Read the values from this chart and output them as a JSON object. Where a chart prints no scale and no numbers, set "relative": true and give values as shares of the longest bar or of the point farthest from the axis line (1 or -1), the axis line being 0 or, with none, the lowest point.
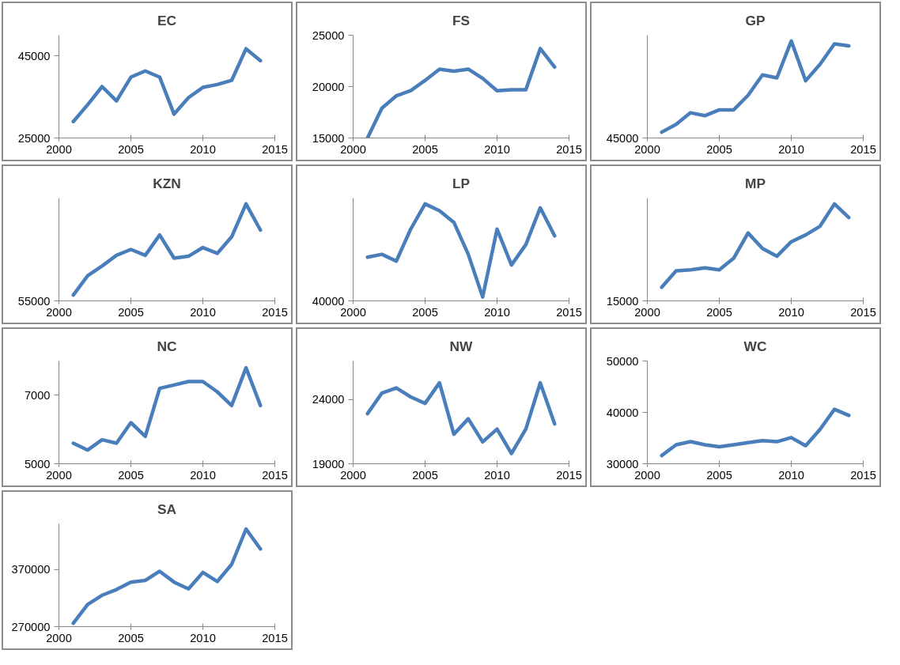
{
  "chart_data": [
    {
      "type": "line",
      "title": "EC",
      "x": [
        2001,
        2002,
        2003,
        2004,
        2005,
        2006,
        2007,
        2008,
        2009,
        2010,
        2011,
        2012,
        2013,
        2014
      ],
      "series": [
        {
          "color": "#4a7ebb",
          "values": [
            29000,
            33100,
            37500,
            34000,
            39800,
            41300,
            39800,
            30800,
            34800,
            37300,
            38000,
            39000,
            46700,
            43800
          ]
        }
      ],
      "xlim": [
        2000,
        2015
      ],
      "xticks": [
        2000,
        2005,
        2010,
        2015
      ],
      "ylim": [
        25000,
        50000
      ],
      "yticks": [
        25000,
        45000
      ],
      "line_style": "solid"
    },
    {
      "type": "line",
      "title": "FS",
      "x": [
        2001,
        2002,
        2003,
        2004,
        2005,
        2006,
        2007,
        2008,
        2009,
        2010,
        2011,
        2012,
        2013,
        2014
      ],
      "series": [
        {
          "color": "#4a7ebb",
          "values": [
            15000,
            17900,
            19100,
            19600,
            20600,
            21700,
            21500,
            21700,
            20800,
            19600,
            19700,
            19700,
            23700,
            21900
          ]
        }
      ],
      "xlim": [
        2000,
        2015
      ],
      "xticks": [
        2000,
        2005,
        2010,
        2015
      ],
      "ylim": [
        15000,
        25000
      ],
      "yticks": [
        15000,
        20000,
        25000
      ],
      "line_style": "solid"
    },
    {
      "type": "line",
      "title": "GP",
      "relative": true,
      "x": [
        2001,
        2002,
        2003,
        2004,
        2005,
        2006,
        2007,
        2008,
        2009,
        2010,
        2011,
        2012,
        2013,
        2014
      ],
      "series": [
        {
          "color": "#4a7ebb",
          "values": [
            0.06,
            0.14,
            0.26,
            0.23,
            0.29,
            0.29,
            0.44,
            0.65,
            0.62,
            1,
            0.59,
            0.76,
            0.97,
            0.95
          ]
        }
      ],
      "xlim": [
        2000,
        2015
      ],
      "xticks": [
        2000,
        2005,
        2010,
        2015
      ],
      "annotations": [
        "45000"
      ],
      "line_style": "solid"
    },
    {
      "type": "line",
      "title": "KZN",
      "relative": true,
      "x": [
        2001,
        2002,
        2003,
        2004,
        2005,
        2006,
        2007,
        2008,
        2009,
        2010,
        2011,
        2012,
        2013,
        2014
      ],
      "series": [
        {
          "color": "#4a7ebb",
          "values": [
            0.06,
            0.26,
            0.36,
            0.47,
            0.53,
            0.47,
            0.68,
            0.44,
            0.46,
            0.55,
            0.49,
            0.66,
            1,
            0.73
          ]
        }
      ],
      "xlim": [
        2000,
        2015
      ],
      "xticks": [
        2000,
        2005,
        2010,
        2015
      ],
      "annotations": [
        "55000"
      ],
      "line_style": "solid"
    },
    {
      "type": "line",
      "title": "LP",
      "relative": true,
      "x": [
        2001,
        2002,
        2003,
        2004,
        2005,
        2006,
        2007,
        2008,
        2009,
        2010,
        2011,
        2012,
        2013,
        2014
      ],
      "series": [
        {
          "color": "#4a7ebb",
          "values": [
            0.45,
            0.48,
            0.41,
            0.74,
            1,
            0.93,
            0.81,
            0.48,
            0.04,
            0.74,
            0.37,
            0.58,
            0.96,
            0.67
          ]
        }
      ],
      "xlim": [
        2000,
        2015
      ],
      "xticks": [
        2000,
        2005,
        2010,
        2015
      ],
      "annotations": [
        "40000"
      ],
      "line_style": "solid"
    },
    {
      "type": "line",
      "title": "MP",
      "relative": true,
      "x": [
        2001,
        2002,
        2003,
        2004,
        2005,
        2006,
        2007,
        2008,
        2009,
        2010,
        2011,
        2012,
        2013,
        2014
      ],
      "series": [
        {
          "color": "#4a7ebb",
          "values": [
            0.14,
            0.31,
            0.32,
            0.34,
            0.32,
            0.44,
            0.7,
            0.54,
            0.46,
            0.61,
            0.68,
            0.77,
            1,
            0.86
          ]
        }
      ],
      "xlim": [
        2000,
        2015
      ],
      "xticks": [
        2000,
        2005,
        2010,
        2015
      ],
      "annotations": [
        "15000"
      ],
      "line_style": "solid"
    },
    {
      "type": "line",
      "title": "NC",
      "x": [
        2001,
        2002,
        2003,
        2004,
        2005,
        2006,
        2007,
        2008,
        2009,
        2010,
        2011,
        2012,
        2013,
        2014
      ],
      "series": [
        {
          "color": "#4a7ebb",
          "values": [
            5600,
            5400,
            5700,
            5600,
            6200,
            5800,
            7200,
            7300,
            7400,
            7400,
            7100,
            6700,
            7800,
            6700
          ]
        }
      ],
      "xlim": [
        2000,
        2015
      ],
      "xticks": [
        2000,
        2005,
        2010,
        2015
      ],
      "ylim": [
        5000,
        8000
      ],
      "yticks": [
        5000,
        7000
      ],
      "line_style": "solid"
    },
    {
      "type": "line",
      "title": "NW",
      "x": [
        2001,
        2002,
        2003,
        2004,
        2005,
        2006,
        2007,
        2008,
        2009,
        2010,
        2011,
        2012,
        2013,
        2014
      ],
      "series": [
        {
          "color": "#4a7ebb",
          "values": [
            22900,
            24500,
            24900,
            24200,
            23700,
            25300,
            21300,
            22500,
            20700,
            21700,
            19800,
            21700,
            25300,
            22100
          ]
        }
      ],
      "xlim": [
        2000,
        2015
      ],
      "xticks": [
        2000,
        2005,
        2010,
        2015
      ],
      "ylim": [
        19000,
        27000
      ],
      "yticks": [
        19000,
        24000
      ],
      "line_style": "solid"
    },
    {
      "type": "line",
      "title": "WC",
      "x": [
        2001,
        2002,
        2003,
        2004,
        2005,
        2006,
        2007,
        2008,
        2009,
        2010,
        2011,
        2012,
        2013,
        2014
      ],
      "series": [
        {
          "color": "#4a7ebb",
          "values": [
            31600,
            33700,
            34300,
            33700,
            33300,
            33700,
            34100,
            34500,
            34300,
            35100,
            33500,
            36700,
            40600,
            39400
          ]
        }
      ],
      "xlim": [
        2000,
        2015
      ],
      "xticks": [
        2000,
        2005,
        2010,
        2015
      ],
      "ylim": [
        30000,
        50000
      ],
      "yticks": [
        30000,
        40000,
        50000
      ],
      "line_style": "solid"
    },
    {
      "type": "line",
      "title": "SA",
      "x": [
        2001,
        2002,
        2003,
        2004,
        2005,
        2006,
        2007,
        2008,
        2009,
        2010,
        2011,
        2012,
        2013,
        2014
      ],
      "series": [
        {
          "color": "#4a7ebb",
          "values": [
            276000,
            309000,
            325000,
            335000,
            348000,
            351000,
            367000,
            348000,
            336000,
            365000,
            349000,
            379000,
            441000,
            406000
          ]
        }
      ],
      "xlim": [
        2000,
        2015
      ],
      "xticks": [
        2000,
        2005,
        2010,
        2015
      ],
      "ylim": [
        270000,
        450000
      ],
      "yticks": [
        270000,
        370000
      ],
      "line_style": "solid"
    }
  ]
}
